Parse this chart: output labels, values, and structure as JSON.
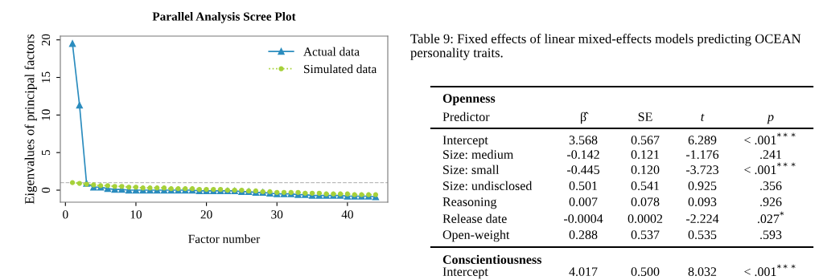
{
  "chart_data": [
    {
      "type": "line",
      "title": "Parallel Analysis Scree Plot",
      "xlabel": "Factor number",
      "ylabel": "Eigenvalues of principal factors",
      "x": [
        1,
        2,
        3,
        4,
        5,
        6,
        7,
        8,
        9,
        10,
        11,
        12,
        13,
        14,
        15,
        16,
        17,
        18,
        19,
        20,
        21,
        22,
        23,
        24,
        25,
        26,
        27,
        28,
        29,
        30,
        31,
        32,
        33,
        34,
        35,
        36,
        37,
        38,
        39,
        40,
        41,
        42,
        43,
        44
      ],
      "series": [
        {
          "name": "Actual data",
          "color": "#2b8cbe",
          "marker": "triangle",
          "line_style": "solid",
          "values": [
            19.5,
            11.3,
            0.9,
            0.4,
            0.4,
            0.2,
            0.1,
            0.1,
            0.0,
            0.0,
            0.0,
            0.0,
            0.0,
            0.0,
            0.0,
            0.0,
            0.0,
            0.0,
            -0.1,
            -0.1,
            -0.1,
            -0.1,
            -0.1,
            -0.1,
            -0.2,
            -0.2,
            -0.3,
            -0.3,
            -0.4,
            -0.5,
            -0.5,
            -0.5,
            -0.6,
            -0.6,
            -0.7,
            -0.7,
            -0.7,
            -0.7,
            -0.7,
            -0.8,
            -0.8,
            -0.8,
            -0.8,
            -0.9
          ]
        },
        {
          "name": "Simulated data",
          "color": "#a6d13a",
          "marker": "circle",
          "line_style": "dotted",
          "values": [
            1.0,
            0.9,
            0.8,
            0.7,
            0.6,
            0.6,
            0.5,
            0.5,
            0.4,
            0.4,
            0.3,
            0.3,
            0.3,
            0.3,
            0.2,
            0.2,
            0.2,
            0.2,
            0.1,
            0.1,
            0.1,
            0.1,
            0.0,
            0.0,
            0.0,
            -0.1,
            -0.1,
            -0.2,
            -0.2,
            -0.3,
            -0.3,
            -0.3,
            -0.3,
            -0.4,
            -0.4,
            -0.4,
            -0.5,
            -0.5,
            -0.5,
            -0.5,
            -0.6,
            -0.6,
            -0.6,
            -0.6
          ]
        }
      ],
      "ref_lines": [
        {
          "axis": "y",
          "value": 1,
          "color": "#bbbbbb",
          "line_style": "dashed"
        }
      ],
      "xlim": [
        -0.72,
        45.72
      ],
      "ylim": [
        -1.6,
        20.5
      ],
      "xticks": [
        0,
        10,
        20,
        30,
        40
      ],
      "yticks": [
        0,
        5,
        10,
        15,
        20
      ],
      "grid": false,
      "legend": "top right"
    },
    {
      "type": "other",
      "title": "Table 9: Fixed effects of linear mixed-effects models predicting OCEAN personality traits.",
      "annotations": [
        "Openness",
        "Predictor",
        "β̂",
        "SE",
        "t",
        "p",
        "Intercept",
        "3.568",
        "0.567",
        "6.289",
        "< .001$^{***}$",
        "Size: medium",
        "-0.142",
        "0.121",
        "-1.176",
        ".241",
        "Size: small",
        "-0.445",
        "0.120",
        "-3.723",
        "< .001$^{***}$",
        "Size: undisclosed",
        "0.501",
        "0.541",
        "0.925",
        ".356",
        "Reasoning",
        "0.007",
        "0.078",
        "0.093",
        ".926",
        "Release date",
        "-0.0004",
        "0.0002",
        "-2.224",
        ".027$^{*}$",
        "Open-weight",
        "0.288",
        "0.537",
        "0.535",
        ".593",
        "Conscientiousness",
        "Intercept",
        "4.017",
        "0.500",
        "8.032",
        "< .001$^{***}$"
      ]
    }
  ]
}
